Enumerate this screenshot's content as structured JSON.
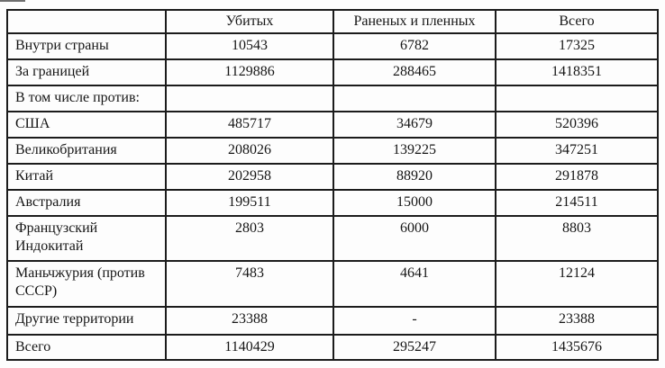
{
  "colors": {
    "page_background": "#fdfdfd",
    "border": "#1c1c1c",
    "text": "#161616"
  },
  "table": {
    "columns": [
      "",
      "Убитых",
      "Раненых и пленных",
      "Всего"
    ],
    "rows": [
      {
        "label": "Внутри страны",
        "killed": "10543",
        "wounded": "6782",
        "total": "17325"
      },
      {
        "label": "За границей",
        "killed": "1129886",
        "wounded": "288465",
        "total": "1418351"
      },
      {
        "label": "В том числе против:",
        "killed": "",
        "wounded": "",
        "total": ""
      },
      {
        "label": "США",
        "killed": "485717",
        "wounded": "34679",
        "total": "520396"
      },
      {
        "label": "Великобритания",
        "killed": "208026",
        "wounded": "139225",
        "total": "347251"
      },
      {
        "label": "Китай",
        "killed": "202958",
        "wounded": "88920",
        "total": "291878"
      },
      {
        "label": "Австралия",
        "killed": "199511",
        "wounded": "15000",
        "total": "214511"
      },
      {
        "label": "Французский Индокитай",
        "killed": "2803",
        "wounded": "6000",
        "total": "8803"
      },
      {
        "label": "Маньчжурия (против СССР)",
        "killed": "7483",
        "wounded": "4641",
        "total": "12124"
      },
      {
        "label": "Другие территории",
        "killed": "23388",
        "wounded": "-",
        "total": "23388"
      },
      {
        "label": "Всего",
        "killed": "1140429",
        "wounded": "295247",
        "total": "1435676"
      }
    ]
  }
}
